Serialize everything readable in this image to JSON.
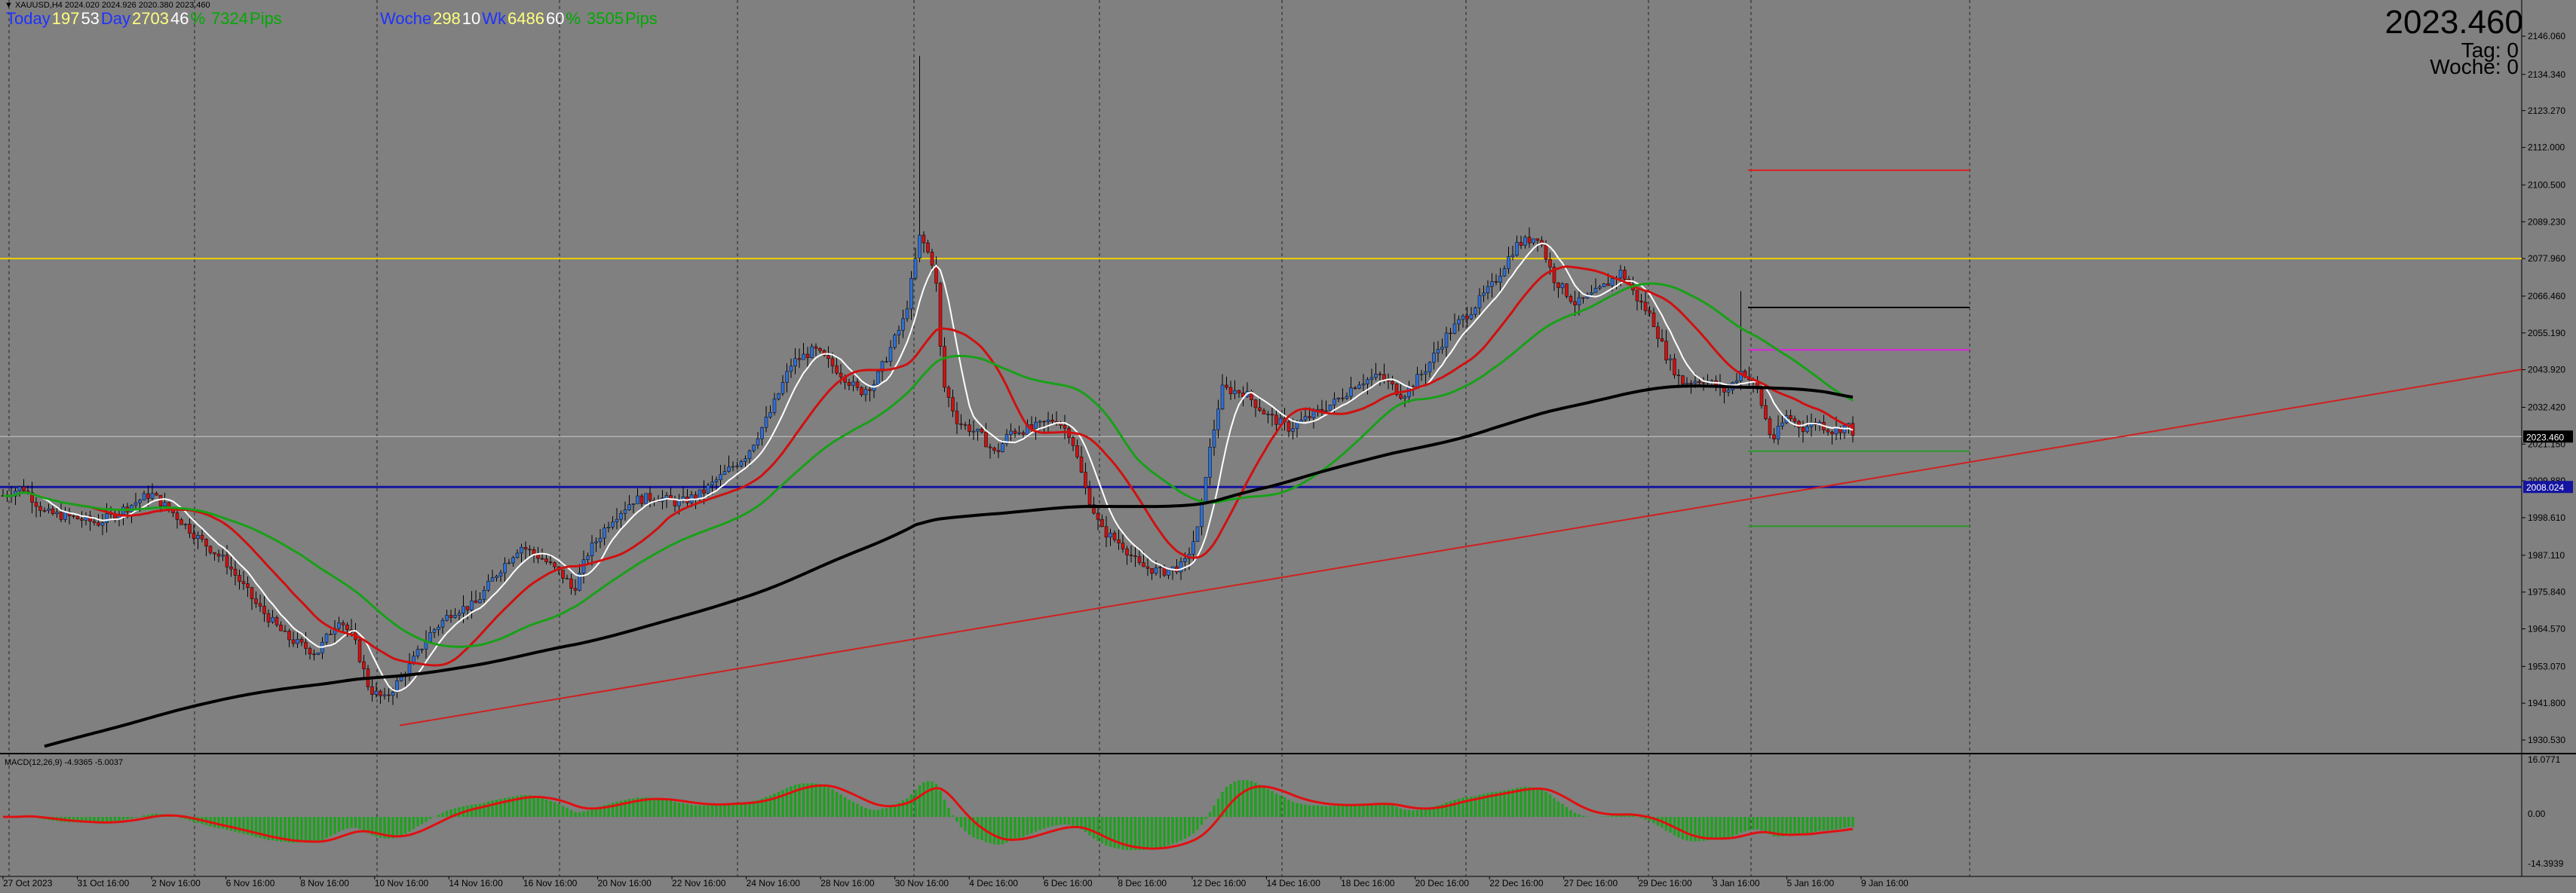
{
  "window": {
    "symbol_line": "▼ XAUUSD,H4  2024.020 2024.926 2020.380 2023.460",
    "big_price": "2023.460",
    "tag_label": "Tag:  0",
    "woche_label": "Woche:  0"
  },
  "stats_left": [
    {
      "text": "Today",
      "color": "#1e32ff"
    },
    {
      "text": "197",
      "color": "#ffff80"
    },
    {
      "text": "53",
      "color": "#ffffff"
    },
    {
      "text": "Day",
      "color": "#1e32ff"
    },
    {
      "text": "2703",
      "color": "#ffff80"
    },
    {
      "text": "46",
      "color": "#ffffff"
    },
    {
      "text": "%",
      "color": "#00aa00"
    },
    {
      "text": "7324",
      "color": "#00aa00"
    },
    {
      "text": "Pips",
      "color": "#00aa00"
    }
  ],
  "stats_right": [
    {
      "text": "Woche",
      "color": "#1e32ff"
    },
    {
      "text": "298",
      "color": "#ffff80"
    },
    {
      "text": "10",
      "color": "#ffffff"
    },
    {
      "text": "Wk",
      "color": "#1e32ff"
    },
    {
      "text": "6486",
      "color": "#ffff80"
    },
    {
      "text": "60",
      "color": "#ffffff"
    },
    {
      "text": "%",
      "color": "#00aa00"
    },
    {
      "text": "3505",
      "color": "#00aa00"
    },
    {
      "text": "Pips",
      "color": "#00aa00"
    }
  ],
  "macd_label": "MACD(12,26,9) -4.9365 -5.0037",
  "price_ticks": [
    "2146.060",
    "2134.340",
    "2123.270",
    "2112.000",
    "2100.500",
    "2089.230",
    "2077.960",
    "2066.460",
    "2055.190",
    "2043.920",
    "2032.420",
    "2021.150",
    "2009.880",
    "1998.610",
    "1987.110",
    "1975.840",
    "1964.570",
    "1953.070",
    "1941.800",
    "1930.530"
  ],
  "current_price_label": "2023.460",
  "blue_level_label": "2008.024",
  "macd_ticks": [
    "16.0771",
    "0.00",
    "-14.3939"
  ],
  "time_ticks": [
    "27 Oct 2023",
    "31 Oct 16:00",
    "2 Nov 16:00",
    "6 Nov 16:00",
    "8 Nov 16:00",
    "10 Nov 16:00",
    "14 Nov 16:00",
    "16 Nov 16:00",
    "20 Nov 16:00",
    "22 Nov 16:00",
    "24 Nov 16:00",
    "28 Nov 16:00",
    "30 Nov 16:00",
    "4 Dec 16:00",
    "6 Dec 16:00",
    "8 Dec 16:00",
    "12 Dec 16:00",
    "14 Dec 16:00",
    "18 Dec 16:00",
    "20 Dec 16:00",
    "22 Dec 16:00",
    "27 Dec 16:00",
    "29 Dec 16:00",
    "3 Jan 16:00",
    "5 Jan 16:00",
    "9 Jan 16:00"
  ],
  "colors": {
    "background": "#808080",
    "bull_candle": "#2f6fd6",
    "bear_candle": "#d01010",
    "ma_fast": "#ffffff",
    "ma_mid": "#d01010",
    "ma_slow_green": "#18a018",
    "ma_200": "#000000",
    "yellow_level": "#f0d000",
    "blue_level": "#1414a0",
    "trendline": "#d02020",
    "macd_hist": "#20a020",
    "macd_signal": "#e01010"
  }
}
